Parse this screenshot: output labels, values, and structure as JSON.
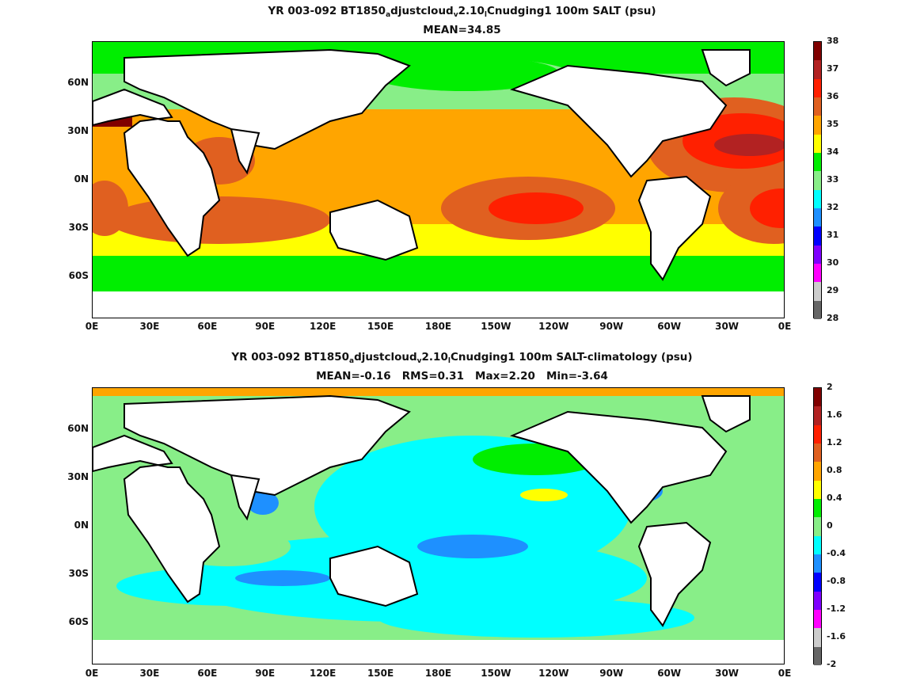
{
  "panels": [
    {
      "title_main": "YR 003-092 BT1850",
      "title_sub1": "a",
      "title_mid": "djustcloud",
      "title_sub2": "v",
      "title_mid2": "2.10",
      "title_sub3": "l",
      "title_end": "Cnudging1 100m SALT (psu)",
      "stats": "MEAN=34.85",
      "colorbar_labels": [
        "38",
        "37",
        "36",
        "35",
        "34",
        "33",
        "32",
        "31",
        "30",
        "29",
        "28"
      ],
      "colorbar_colors": [
        "#800000",
        "#b22222",
        "#ff2000",
        "#e06020",
        "#ffa500",
        "#ffff00",
        "#00ee00",
        "#88ee88",
        "#00ffff",
        "#1e90ff",
        "#0000ff",
        "#7f00ff",
        "#ff00ff",
        "#cccccc",
        "#666666"
      ]
    },
    {
      "title_main": "YR 003-092 BT1850",
      "title_sub1": "a",
      "title_mid": "djustcloud",
      "title_sub2": "v",
      "title_mid2": "2.10",
      "title_sub3": "l",
      "title_end": "Cnudging1 100m SALT-climatology (psu)",
      "stats": "MEAN=-0.16   RMS=0.31   Max=2.20   Min=-3.64",
      "colorbar_labels": [
        "2",
        "1.6",
        "1.2",
        "0.8",
        "0.4",
        "0",
        "-0.4",
        "-0.8",
        "-1.2",
        "-1.6",
        "-2"
      ],
      "colorbar_colors": [
        "#800000",
        "#b22222",
        "#ff2000",
        "#e06020",
        "#ffa500",
        "#ffff00",
        "#00ee00",
        "#88ee88",
        "#00ffff",
        "#1e90ff",
        "#0000ff",
        "#7f00ff",
        "#ff00ff",
        "#cccccc",
        "#666666"
      ]
    }
  ],
  "lat_labels": [
    "60N",
    "30N",
    "0N",
    "30S",
    "60S"
  ],
  "lon_labels": [
    "0E",
    "30E",
    "60E",
    "90E",
    "120E",
    "150E",
    "180E",
    "150W",
    "120W",
    "90W",
    "60W",
    "30W",
    "0E"
  ]
}
